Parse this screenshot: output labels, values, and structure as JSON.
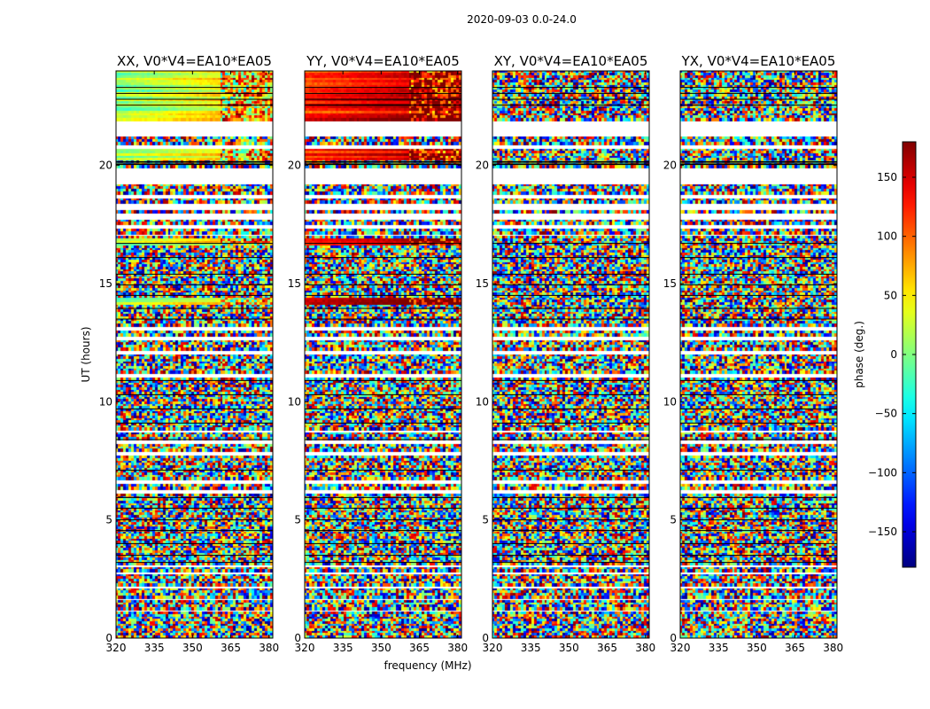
{
  "chart_data": {
    "type": "heatmap",
    "suptitle": "2020-09-03 0.0-24.0",
    "xlabel": "frequency (MHz)",
    "ylabel": "UT (hours)",
    "xlim": [
      320,
      381.5
    ],
    "ylim": [
      0,
      24
    ],
    "xticks": [
      320,
      335,
      350,
      365,
      380
    ],
    "yticks": [
      0,
      5,
      10,
      15,
      20
    ],
    "panels": [
      {
        "title": "XX, V0*V4=EA10*EA05",
        "mode": "smooth",
        "base": 0.58,
        "trend": 0.5
      },
      {
        "title": "YY, V0*V4=EA10*EA05",
        "mode": "smooth",
        "base": 0.88,
        "trend": 0.35
      },
      {
        "title": "XY, V0*V4=EA10*EA05",
        "mode": "noise",
        "base": 0.5,
        "trend": 0
      },
      {
        "title": "YX, V0*V4=EA10*EA05",
        "mode": "noise",
        "base": 0.5,
        "trend": 0
      }
    ],
    "colorbar": {
      "label": "phase (deg.)",
      "range": [
        -180,
        180
      ],
      "ticks": [
        -150,
        -100,
        -50,
        0,
        50,
        100,
        150
      ],
      "tick_labels": [
        "−150",
        "−100",
        "−50",
        "0",
        "50",
        "100",
        "150"
      ],
      "colormap": "jet"
    },
    "flagged_ut_ranges": [
      [
        21.2,
        21.9
      ],
      [
        20.7,
        20.85
      ],
      [
        19.25,
        19.9
      ],
      [
        18.6,
        18.8
      ],
      [
        18.15,
        18.35
      ],
      [
        17.75,
        17.95
      ],
      [
        17.35,
        17.5
      ],
      [
        17.0,
        17.1
      ],
      [
        13.05,
        13.2
      ],
      [
        12.6,
        12.75
      ],
      [
        12.05,
        12.15
      ],
      [
        11.05,
        11.15
      ],
      [
        9.35,
        9.45
      ],
      [
        8.75,
        8.85
      ],
      [
        8.25,
        8.35
      ],
      [
        7.75,
        7.85
      ],
      [
        7.45,
        7.55
      ],
      [
        6.55,
        6.7
      ],
      [
        6.1,
        6.25
      ],
      [
        3.35,
        3.45
      ],
      [
        3.0,
        3.1
      ],
      [
        2.75,
        2.82
      ],
      [
        2.45,
        2.52
      ],
      [
        2.1,
        2.17
      ],
      [
        1.6,
        1.67
      ],
      [
        1.1,
        1.17
      ],
      [
        0.95,
        1.02
      ]
    ],
    "black_ut_lines": [
      20.05,
      20.15,
      23.3,
      23.05,
      22.8,
      22.55,
      16.7,
      16.1,
      15.4,
      14.95,
      14.5,
      13.95,
      13.5,
      10.9,
      10.3,
      9.7,
      9.1,
      8.4,
      7.1,
      5.95,
      5.5,
      5.0,
      4.55,
      4.0,
      3.5,
      3.2
    ],
    "coherent_ut_ranges": [
      [
        22.0,
        24.0
      ],
      [
        21.9,
        22.0
      ],
      [
        20.2,
        20.7
      ],
      [
        16.6,
        16.9
      ],
      [
        14.1,
        14.4
      ]
    ]
  }
}
